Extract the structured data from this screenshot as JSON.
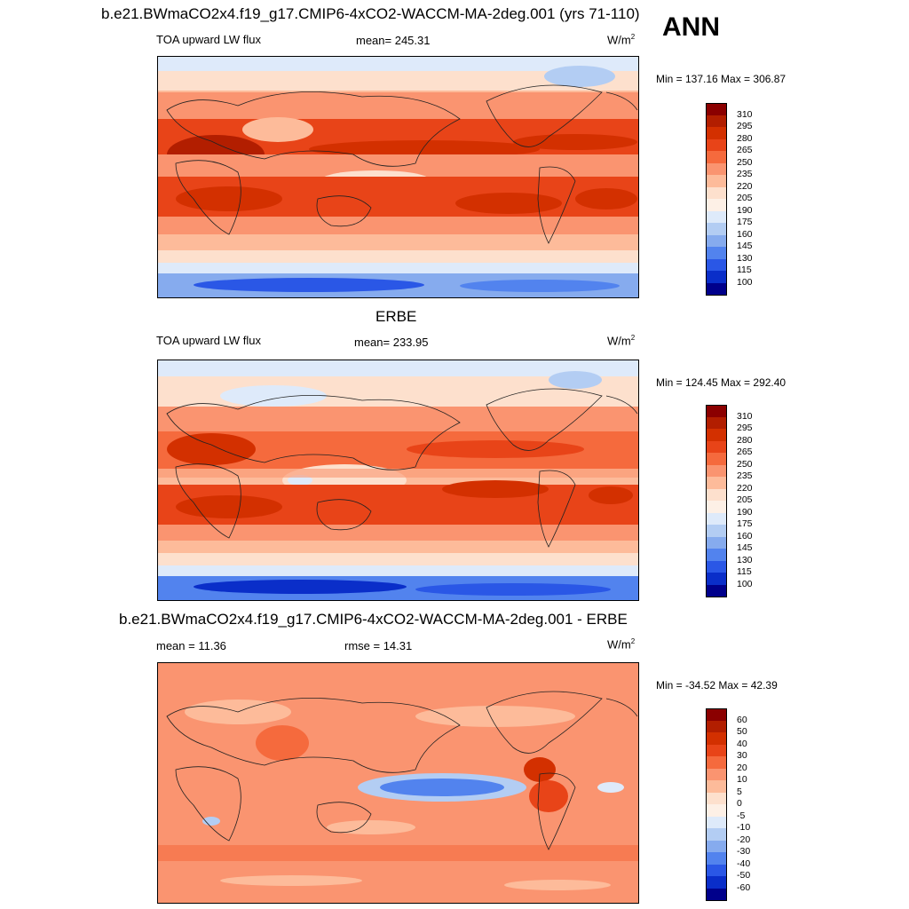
{
  "page": {
    "season": "ANN"
  },
  "panels": [
    {
      "title": "b.e21.BWmaCO2x4.f19_g17.CMIP6-4xCO2-WACCM-MA-2deg.001 (yrs 71-110)",
      "left_label": "TOA upward LW flux",
      "center_label": "mean= 245.31",
      "units_base": "W/m",
      "units_exp": "2",
      "minmax": "Min = 137.16 Max = 306.87",
      "colorbar": {
        "labels": [
          "310",
          "295",
          "280",
          "265",
          "250",
          "235",
          "220",
          "205",
          "190",
          "175",
          "160",
          "145",
          "130",
          "115",
          "100"
        ],
        "colors": [
          "#8b0000",
          "#b21e00",
          "#d33000",
          "#e84418",
          "#f56a3d",
          "#fa9470",
          "#fdbb9a",
          "#fde0cd",
          "#fdf0e6",
          "#deeafa",
          "#b3cdf3",
          "#86abee",
          "#5283ee",
          "#2a57e6",
          "#0a2ec9",
          "#00008b"
        ]
      }
    },
    {
      "title": "ERBE",
      "left_label": "TOA upward LW flux",
      "center_label": "mean= 233.95",
      "units_base": "W/m",
      "units_exp": "2",
      "minmax": "Min = 124.45 Max = 292.40",
      "colorbar": {
        "labels": [
          "310",
          "295",
          "280",
          "265",
          "250",
          "235",
          "220",
          "205",
          "190",
          "175",
          "160",
          "145",
          "130",
          "115",
          "100"
        ],
        "colors": [
          "#8b0000",
          "#b21e00",
          "#d33000",
          "#e84418",
          "#f56a3d",
          "#fa9470",
          "#fdbb9a",
          "#fde0cd",
          "#fdf0e6",
          "#deeafa",
          "#b3cdf3",
          "#86abee",
          "#5283ee",
          "#2a57e6",
          "#0a2ec9",
          "#00008b"
        ]
      }
    },
    {
      "title": "b.e21.BWmaCO2x4.f19_g17.CMIP6-4xCO2-WACCM-MA-2deg.001 - ERBE",
      "left_label": "mean =  11.36",
      "center_label": "rmse =  14.31",
      "units_base": "W/m",
      "units_exp": "2",
      "minmax": "Min = -34.52 Max =  42.39",
      "colorbar": {
        "labels": [
          "60",
          "50",
          "40",
          "30",
          "20",
          "10",
          "5",
          "0",
          "-5",
          "-10",
          "-20",
          "-30",
          "-40",
          "-50",
          "-60"
        ],
        "colors": [
          "#8b0000",
          "#b21e00",
          "#d33000",
          "#e84418",
          "#f56a3d",
          "#fa9470",
          "#fdbb9a",
          "#fde0cd",
          "#fdf0e6",
          "#deeafa",
          "#b3cdf3",
          "#86abee",
          "#5283ee",
          "#2a57e6",
          "#0a2ec9",
          "#00008b"
        ]
      }
    }
  ]
}
